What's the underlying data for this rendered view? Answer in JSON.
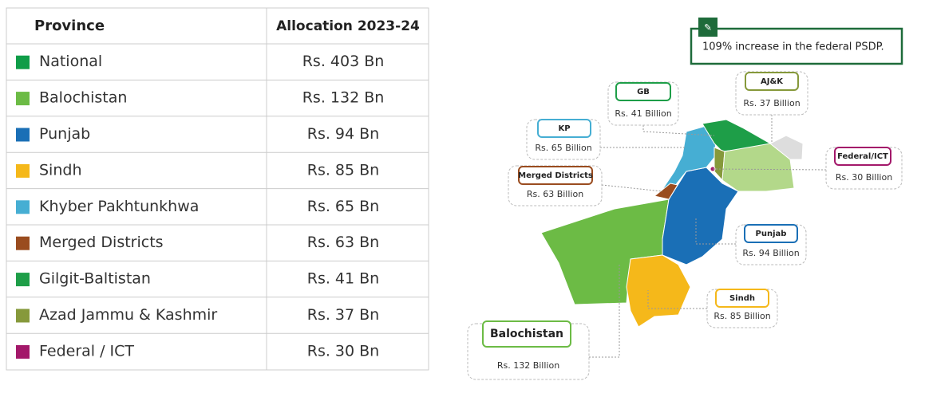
{
  "table": {
    "header": [
      "Province",
      "Allocation 2023-24"
    ],
    "rows": [
      {
        "name": "National",
        "allocation": "Rs. 403 Bn",
        "color": "#0f9d48"
      },
      {
        "name": "Balochistan",
        "allocation": "Rs. 132 Bn",
        "color": "#6cbb45"
      },
      {
        "name": "Punjab",
        "allocation": "Rs. 94 Bn",
        "color": "#1a6fb6"
      },
      {
        "name": "Sindh",
        "allocation": "Rs. 85 Bn",
        "color": "#f5b81a"
      },
      {
        "name": "Khyber Pakhtunkhwa",
        "allocation": "Rs. 65 Bn",
        "color": "#46aed3"
      },
      {
        "name": "Merged Districts",
        "allocation": "Rs. 63 Bn",
        "color": "#9a4c1f"
      },
      {
        "name": "Gilgit-Baltistan",
        "allocation": "Rs. 41 Bn",
        "color": "#1e9e48"
      },
      {
        "name": "Azad Jammu & Kashmir",
        "allocation": "Rs. 37 Bn",
        "color": "#86993b"
      },
      {
        "name": "Federal / ICT",
        "allocation": "Rs. 30 Bn",
        "color": "#a3186a"
      }
    ]
  },
  "callout": "109% increase in the federal PSDP.",
  "map_labels": [
    {
      "name": "GB",
      "value": "Rs. 41 Billion"
    },
    {
      "name": "AJ&K",
      "value": "Rs. 37 Billion"
    },
    {
      "name": "KP",
      "value": "Rs. 65 Billion"
    },
    {
      "name": "Federal/ICT",
      "value": "Rs. 30 Billion"
    },
    {
      "name": "Merged Districts",
      "value": "Rs. 63 Billion"
    },
    {
      "name": "Punjab",
      "value": "Rs. 94 Billion"
    },
    {
      "name": "Sindh",
      "value": "Rs. 85 Billion"
    },
    {
      "name": "Balochistan",
      "value": "Rs. 132 Billion"
    }
  ]
}
